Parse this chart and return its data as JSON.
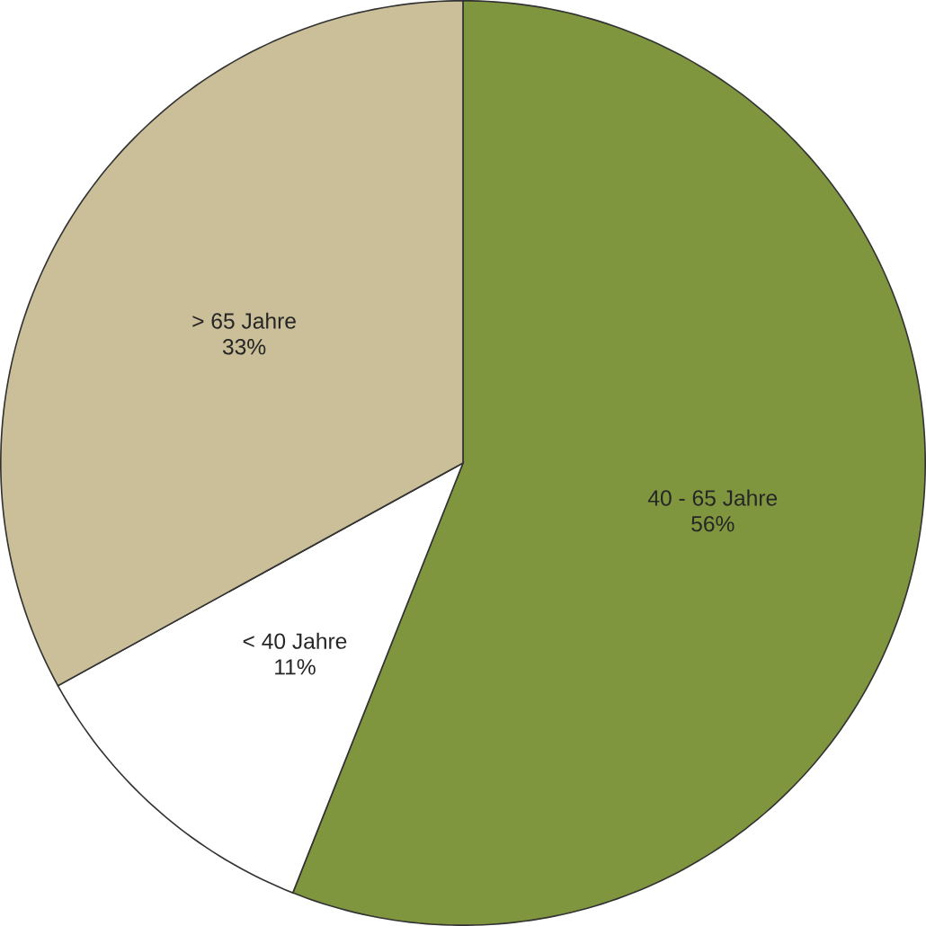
{
  "chart_data": {
    "type": "pie",
    "categories": [
      "40 - 65 Jahre",
      "< 40 Jahre",
      "> 65 Jahre"
    ],
    "values": [
      56,
      11,
      33
    ],
    "value_labels": [
      "56%",
      "11%",
      "33%"
    ],
    "colors": [
      "#7f963e",
      "#ffffff",
      "#cbbf9a"
    ]
  }
}
